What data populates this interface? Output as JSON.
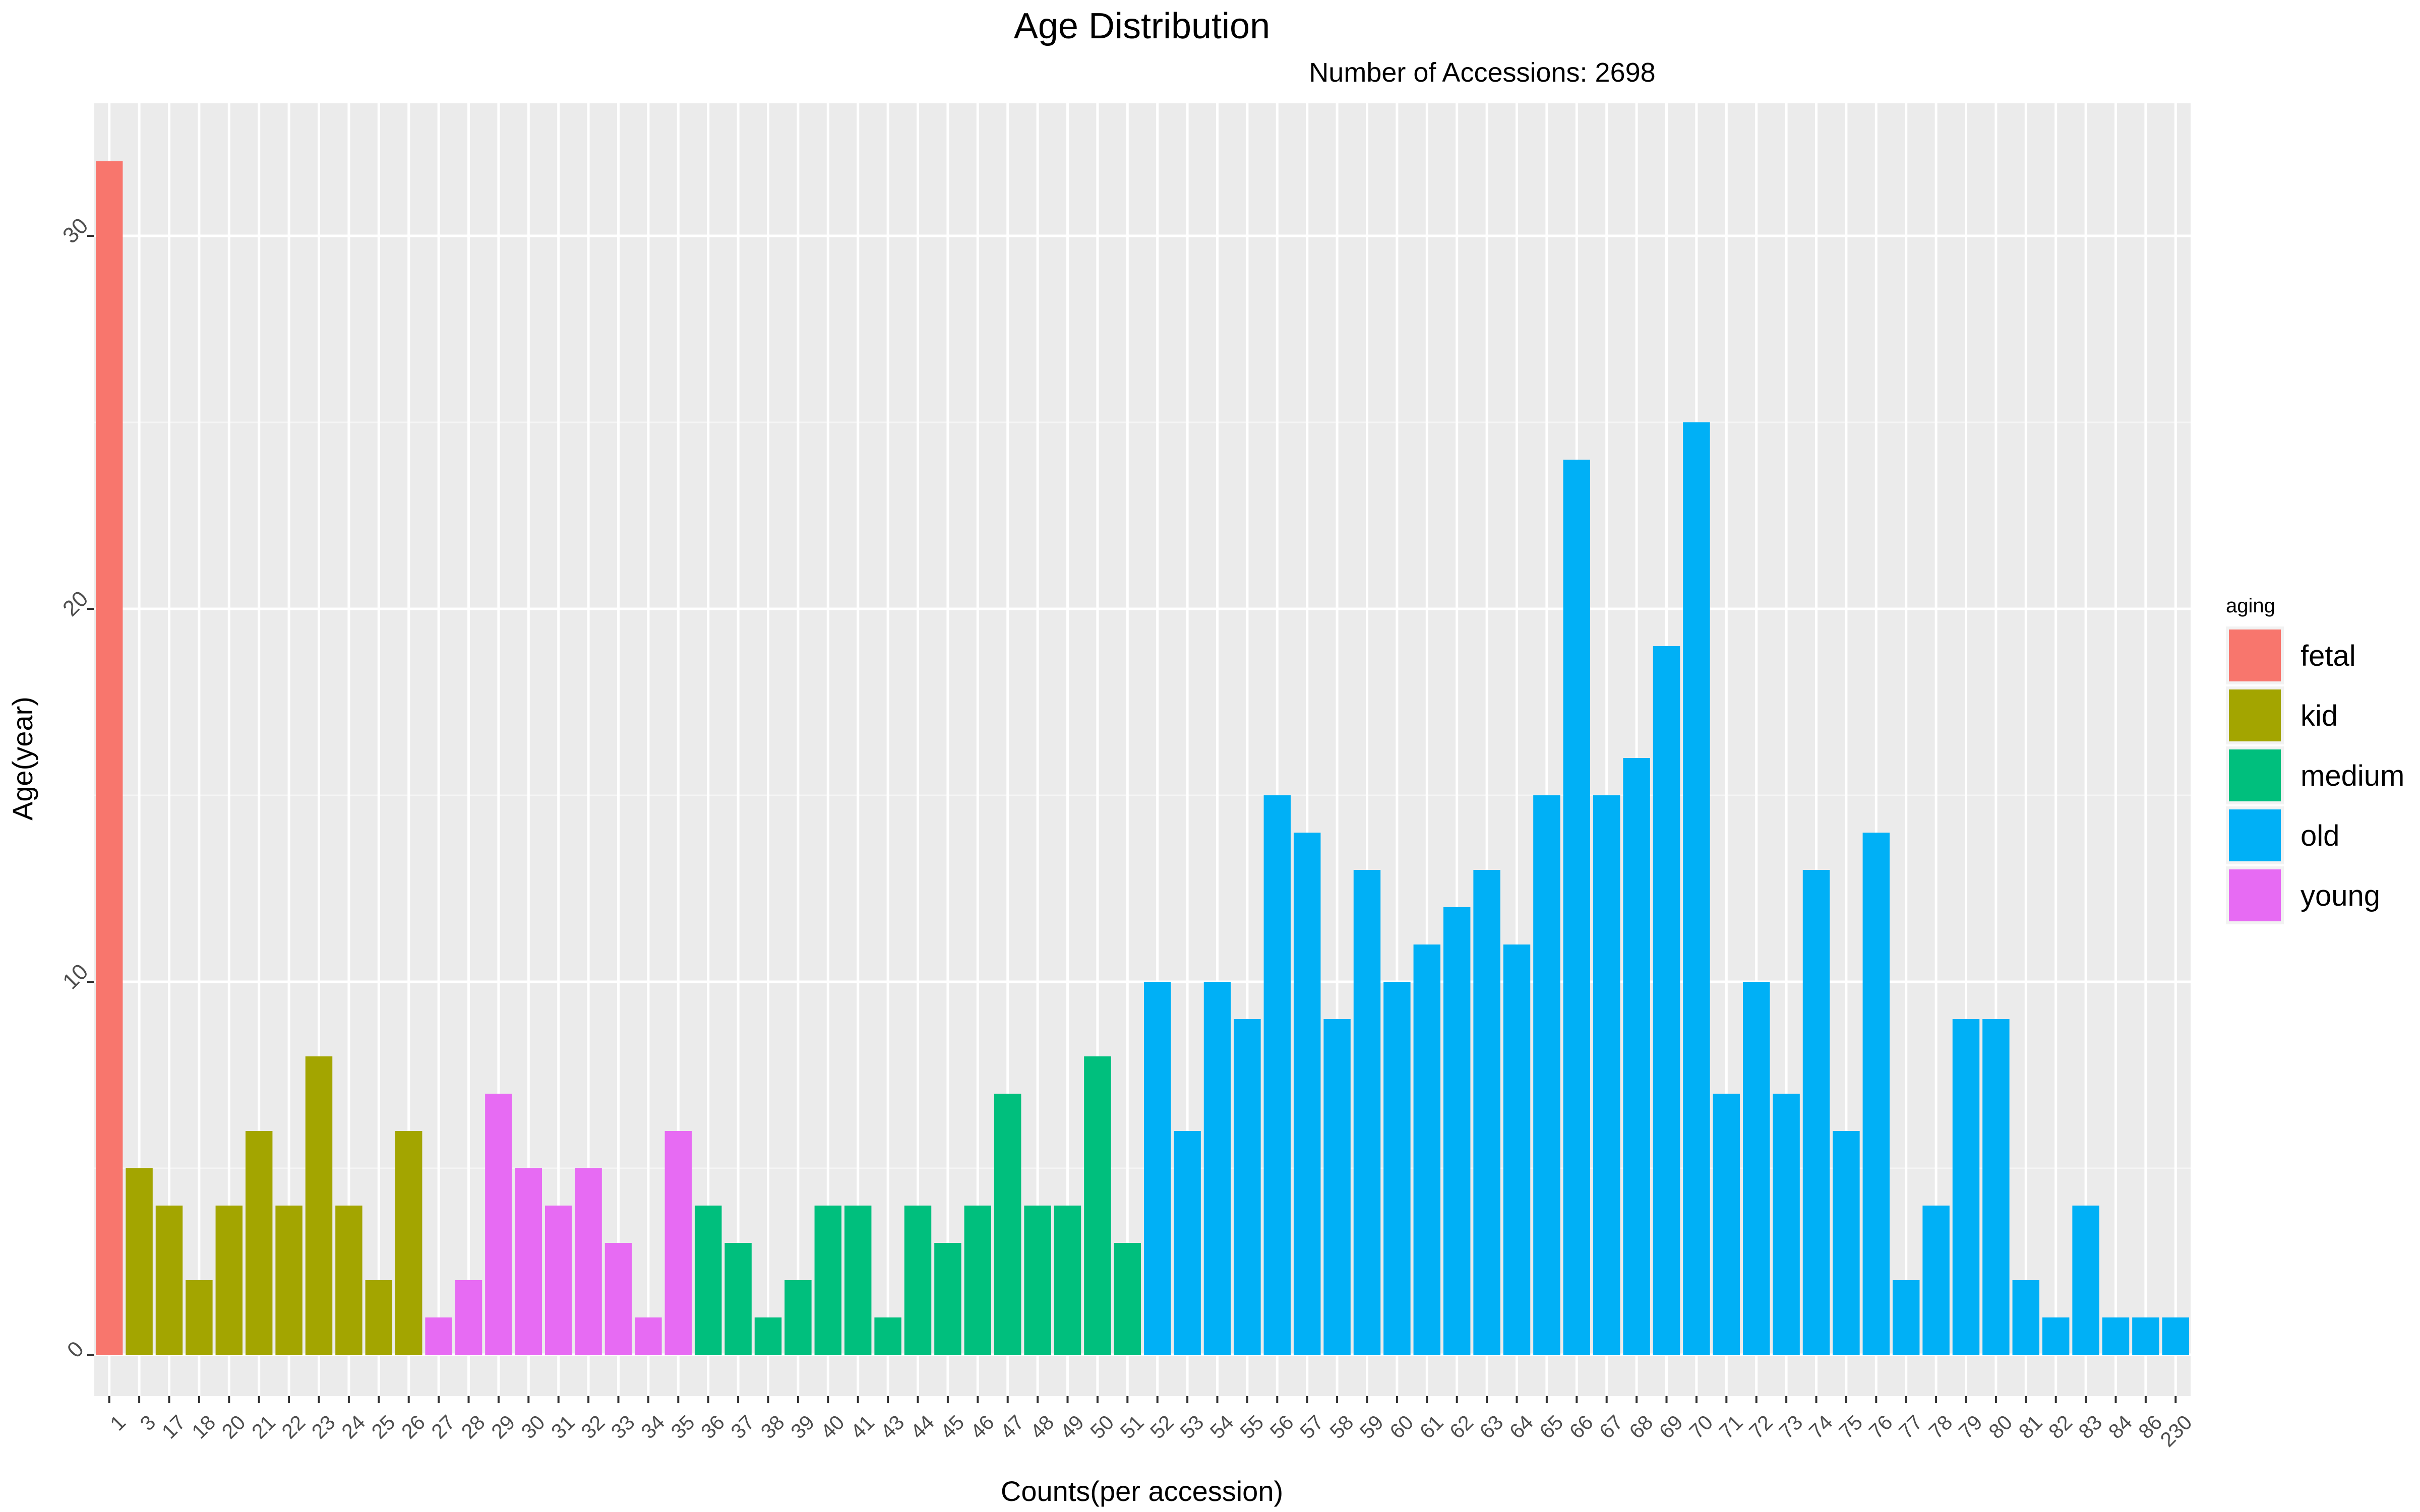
{
  "chart_data": {
    "type": "bar",
    "title": "Age Distribution",
    "subtitle": "Number of Accessions: 2698",
    "xlabel": "Counts(per accession)",
    "ylabel": "Age(year)",
    "ylim": [
      0,
      32.5
    ],
    "yticks": [
      "0",
      "10",
      "20",
      "30"
    ],
    "grid": true,
    "legend": {
      "title": "aging",
      "placement": "right",
      "entries": [
        {
          "name": "fetal",
          "color": "#F8766D"
        },
        {
          "name": "kid",
          "color": "#A3A500"
        },
        {
          "name": "medium",
          "color": "#00BF7D"
        },
        {
          "name": "old",
          "color": "#00B0F6"
        },
        {
          "name": "young",
          "color": "#E76BF3"
        }
      ]
    },
    "categories": [
      "1",
      "3",
      "17",
      "18",
      "20",
      "21",
      "22",
      "23",
      "24",
      "25",
      "26",
      "27",
      "28",
      "29",
      "30",
      "31",
      "32",
      "33",
      "34",
      "35",
      "36",
      "37",
      "38",
      "39",
      "40",
      "41",
      "43",
      "44",
      "45",
      "46",
      "47",
      "48",
      "49",
      "50",
      "51",
      "52",
      "53",
      "54",
      "55",
      "56",
      "57",
      "58",
      "59",
      "60",
      "61",
      "62",
      "63",
      "64",
      "65",
      "66",
      "67",
      "68",
      "69",
      "70",
      "71",
      "72",
      "73",
      "74",
      "75",
      "76",
      "77",
      "78",
      "79",
      "80",
      "81",
      "82",
      "83",
      "84",
      "86",
      "230"
    ],
    "values": [
      32,
      5,
      4,
      2,
      4,
      6,
      4,
      8,
      4,
      2,
      6,
      1,
      2,
      7,
      5,
      4,
      5,
      3,
      1,
      6,
      4,
      3,
      1,
      2,
      4,
      4,
      1,
      4,
      3,
      4,
      7,
      4,
      4,
      8,
      3,
      10,
      6,
      10,
      9,
      15,
      14,
      9,
      13,
      10,
      11,
      12,
      13,
      11,
      15,
      24,
      15,
      16,
      19,
      25,
      7,
      10,
      7,
      13,
      6,
      14,
      2,
      4,
      9,
      9,
      2,
      1,
      4,
      1,
      1,
      1
    ],
    "groups": [
      "fetal",
      "kid",
      "kid",
      "kid",
      "kid",
      "kid",
      "kid",
      "kid",
      "kid",
      "kid",
      "kid",
      "young",
      "young",
      "young",
      "young",
      "young",
      "young",
      "young",
      "young",
      "young",
      "medium",
      "medium",
      "medium",
      "medium",
      "medium",
      "medium",
      "medium",
      "medium",
      "medium",
      "medium",
      "medium",
      "medium",
      "medium",
      "medium",
      "medium",
      "old",
      "old",
      "old",
      "old",
      "old",
      "old",
      "old",
      "old",
      "old",
      "old",
      "old",
      "old",
      "old",
      "old",
      "old",
      "old",
      "old",
      "old",
      "old",
      "old",
      "old",
      "old",
      "old",
      "old",
      "old",
      "old",
      "old",
      "old",
      "old",
      "old",
      "old",
      "old",
      "old",
      "old",
      "old"
    ]
  }
}
